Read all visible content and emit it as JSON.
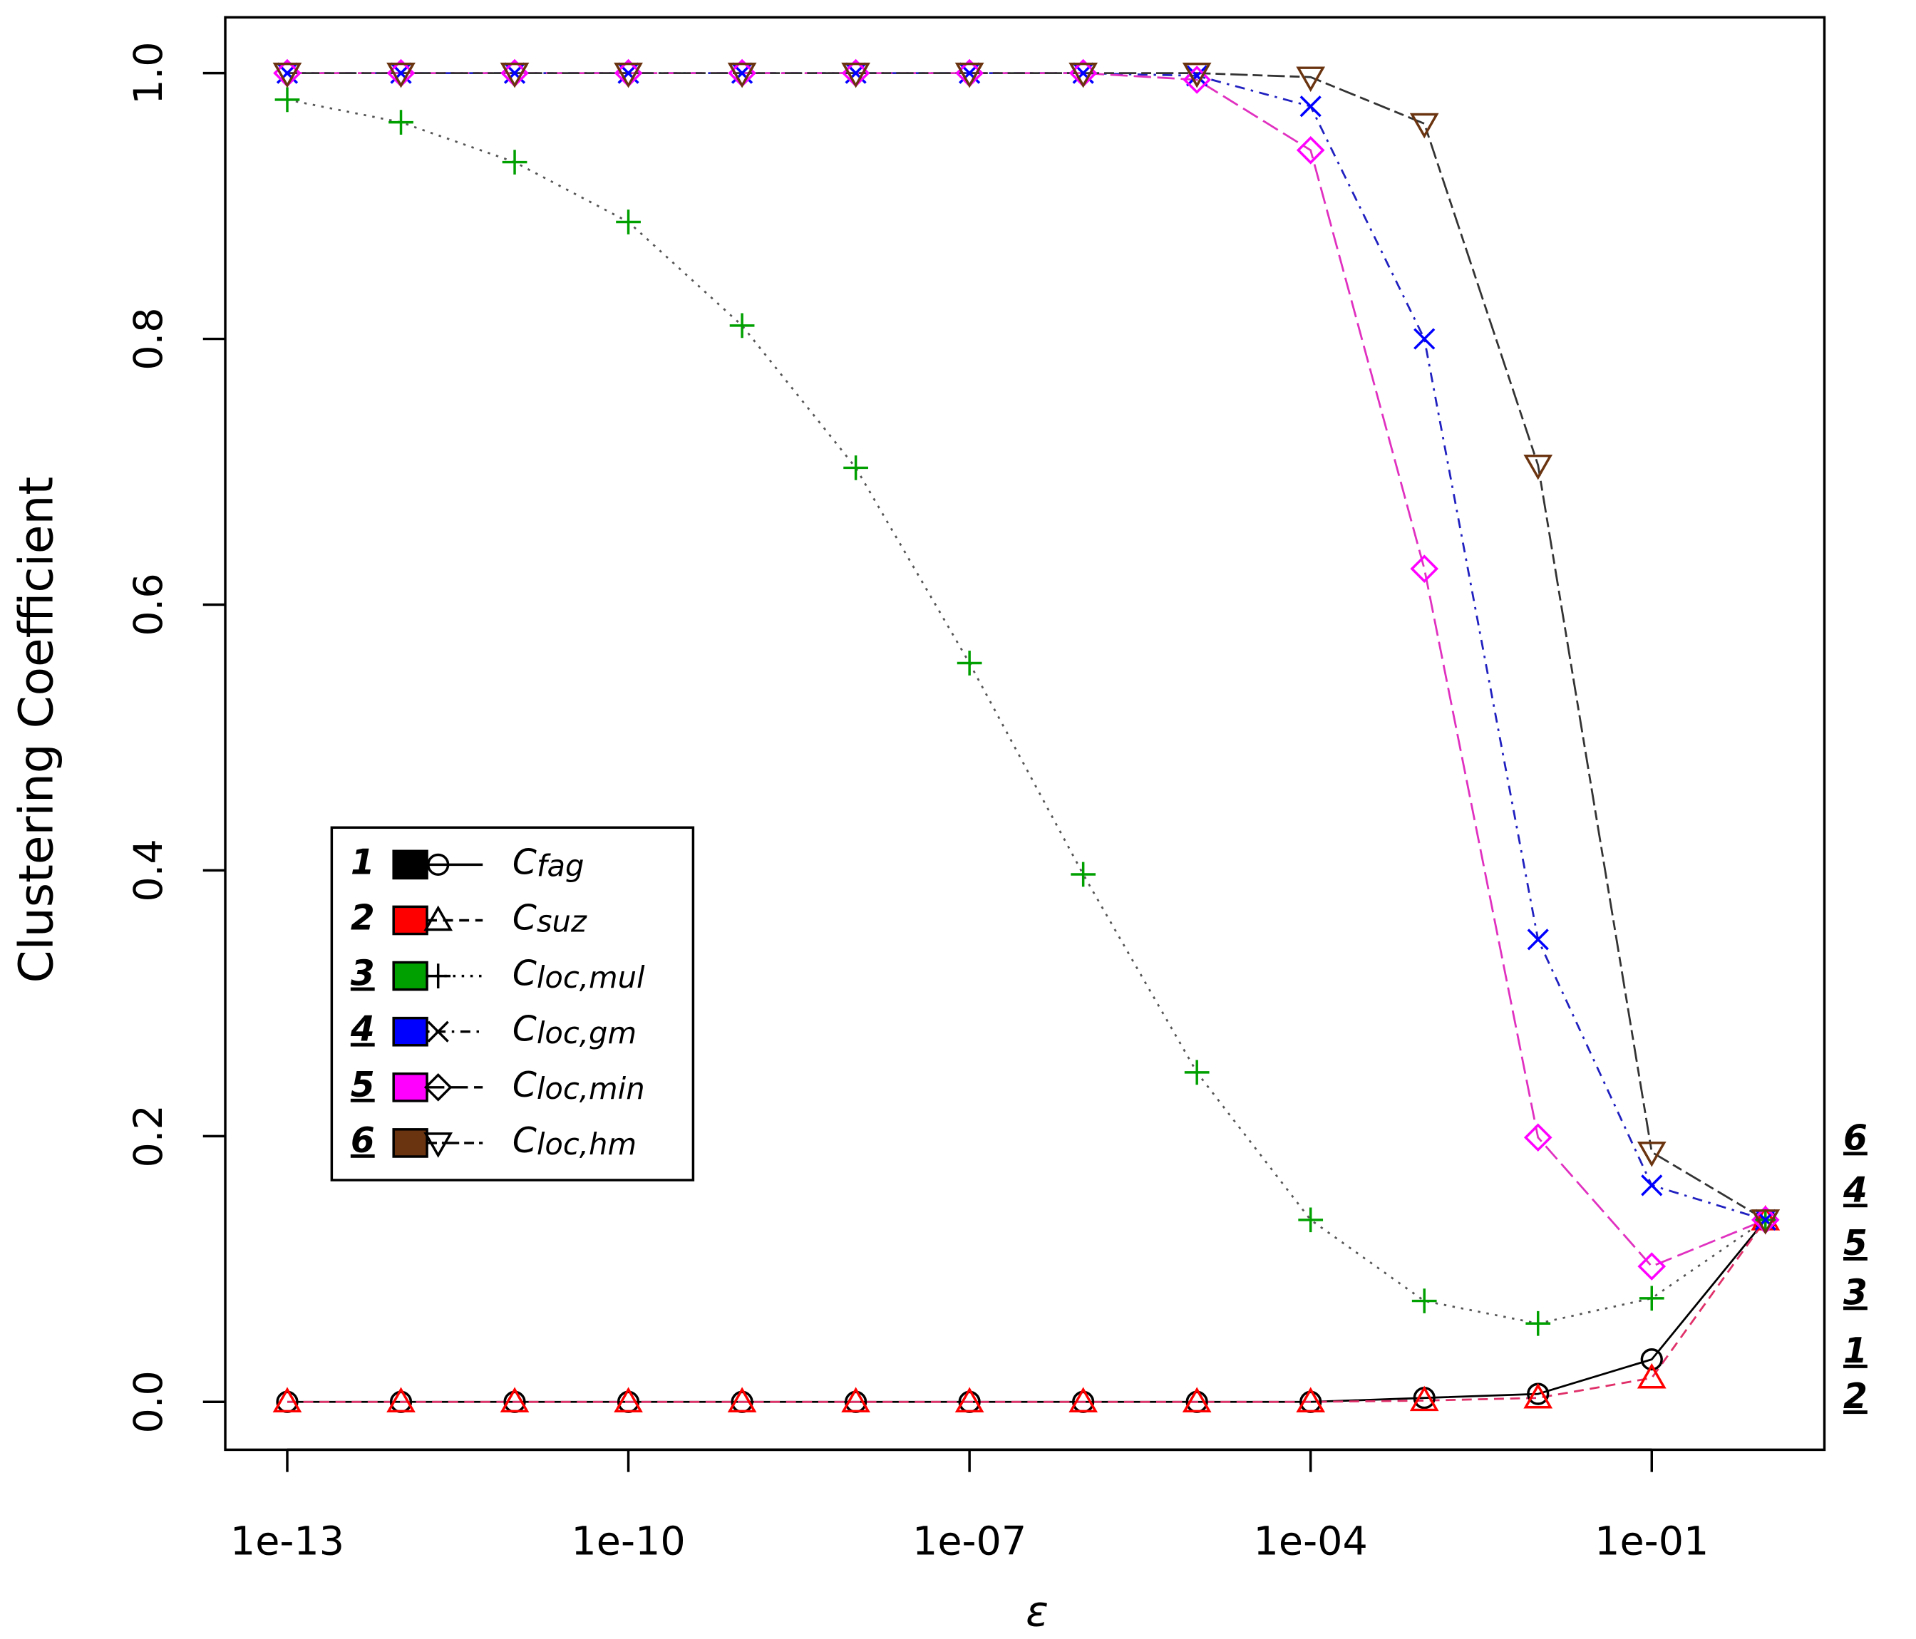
{
  "chart_data": {
    "type": "line",
    "x_label": "ε",
    "y_label": "Clustering Coefficient",
    "xscale": "log",
    "x": [
      1e-13,
      1e-12,
      1e-11,
      1e-10,
      1e-09,
      1e-08,
      1e-07,
      1e-06,
      1e-05,
      0.0001,
      0.001,
      0.01,
      0.1,
      1
    ],
    "xlim": [
      2.85e-14,
      3.3
    ],
    "xticks": [
      {
        "value": 1e-13,
        "label": "1e-13"
      },
      {
        "value": 1e-10,
        "label": "1e-10"
      },
      {
        "value": 1e-07,
        "label": "1e-07"
      },
      {
        "value": 0.0001,
        "label": "1e-04"
      },
      {
        "value": 0.1,
        "label": "1e-01"
      }
    ],
    "ylim": [
      -0.036,
      1.042
    ],
    "yticks": [
      {
        "value": 0,
        "label": "0.0"
      },
      0.2,
      0.4,
      0.6,
      0.8,
      {
        "value": 1,
        "label": "1.0"
      }
    ],
    "grid": false,
    "legend_position": "left",
    "series": [
      {
        "id": "1",
        "symbol": "C",
        "subscript": "fag",
        "color": "#000000",
        "line_color": "#000000",
        "marker": "circle",
        "linestyle": "solid",
        "values": [
          0,
          0,
          0,
          0,
          0,
          0,
          0,
          0,
          0,
          0,
          0.003,
          0.006,
          0.032,
          0.137
        ]
      },
      {
        "id": "2",
        "symbol": "C",
        "subscript": "suz",
        "color": "#ff0000",
        "line_color": "#e0306a",
        "marker": "triangle",
        "linestyle": "dashed",
        "values": [
          0,
          0,
          0,
          0,
          0,
          0,
          0,
          0,
          0,
          0,
          0.001,
          0.003,
          0.018,
          0.137
        ]
      },
      {
        "id": "3",
        "symbol": "C",
        "subscript": "loc,mul",
        "color": "#00a000",
        "line_color": "#555555",
        "marker": "plus",
        "linestyle": "dotted",
        "values": [
          0.98,
          0.963,
          0.933,
          0.888,
          0.81,
          0.703,
          0.556,
          0.397,
          0.248,
          0.137,
          0.076,
          0.059,
          0.078,
          0.137
        ]
      },
      {
        "id": "4",
        "symbol": "C",
        "subscript": "loc,gm",
        "color": "#0000ff",
        "line_color": "#2020c0",
        "marker": "x",
        "linestyle": "dotdash",
        "values": [
          1,
          1,
          1,
          1,
          1,
          1,
          1,
          1,
          0.998,
          0.975,
          0.8,
          0.348,
          0.163,
          0.137
        ]
      },
      {
        "id": "5",
        "symbol": "C",
        "subscript": "loc,min",
        "color": "#ff00ff",
        "line_color": "#e030c0",
        "marker": "diamond",
        "linestyle": "longdash",
        "values": [
          1,
          1,
          1,
          1,
          1,
          1,
          1,
          1,
          0.995,
          0.942,
          0.627,
          0.199,
          0.102,
          0.137
        ]
      },
      {
        "id": "6",
        "symbol": "C",
        "subscript": "loc,hm",
        "color": "#6b3410",
        "line_color": "#333333",
        "marker": "triangle-down",
        "linestyle": "twodash",
        "values": [
          1,
          1,
          1,
          1,
          1,
          1,
          1,
          1,
          1,
          0.997,
          0.962,
          0.705,
          0.188,
          0.137
        ]
      }
    ]
  }
}
